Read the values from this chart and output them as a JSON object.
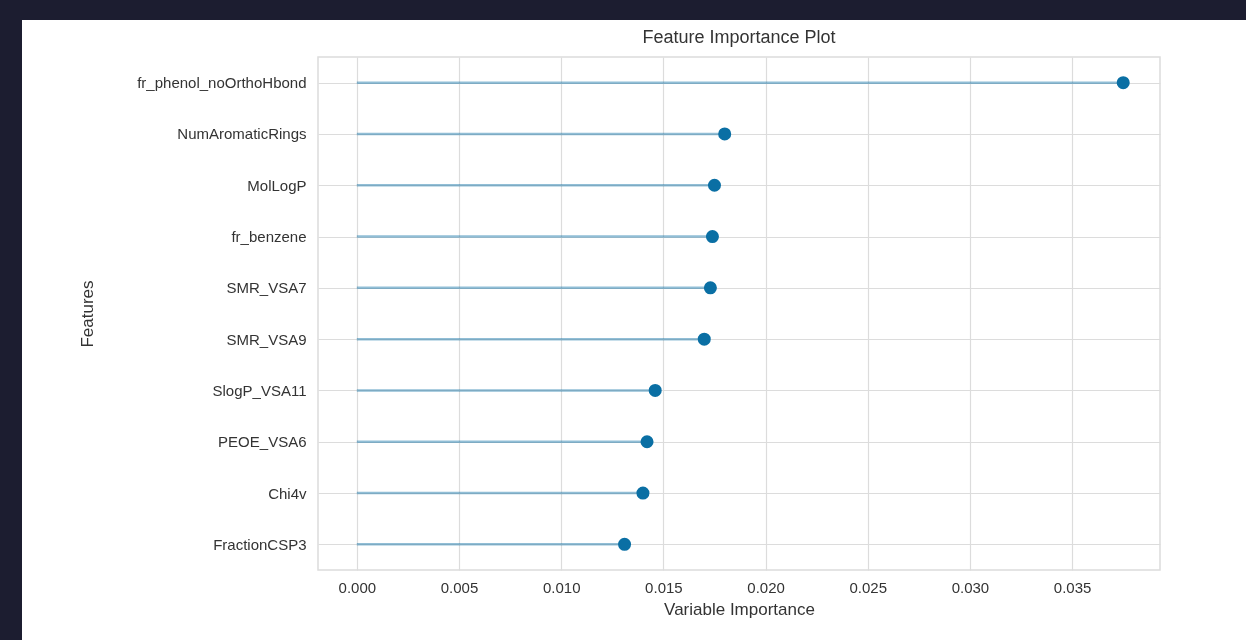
{
  "chart_data": {
    "type": "lollipop",
    "orientation": "horizontal",
    "title": "Feature Importance Plot",
    "xlabel": "Variable Importance",
    "ylabel": "Features",
    "categories": [
      "fr_phenol_noOrthoHbond",
      "NumAromaticRings",
      "MolLogP",
      "fr_benzene",
      "SMR_VSA7",
      "SMR_VSA9",
      "SlogP_VSA11",
      "PEOE_VSA6",
      "Chi4v",
      "FractionCSP3"
    ],
    "values": [
      0.0375,
      0.018,
      0.0175,
      0.0174,
      0.0173,
      0.017,
      0.0146,
      0.0142,
      0.014,
      0.0131
    ],
    "color": "#0a6fa4",
    "marker": "circle",
    "grid": true,
    "xlim": [
      -0.0019,
      0.0393
    ],
    "xticks": [
      {
        "value": 0,
        "label": "0.000"
      },
      {
        "value": 0.005,
        "label": "0.005"
      },
      {
        "value": 0.01,
        "label": "0.010"
      },
      {
        "value": 0.015,
        "label": "0.015"
      },
      {
        "value": 0.02,
        "label": "0.020"
      },
      {
        "value": 0.025,
        "label": "0.025"
      },
      {
        "value": 0.03,
        "label": "0.030"
      },
      {
        "value": 0.035,
        "label": "0.035"
      }
    ]
  }
}
